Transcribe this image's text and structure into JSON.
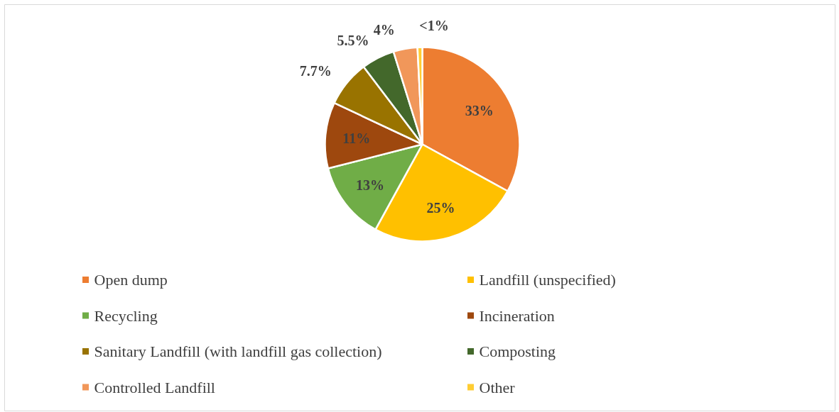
{
  "chart_data": {
    "type": "pie",
    "categories": [
      "Open dump",
      "Landfill (unspecified)",
      "Recycling",
      "Incineration",
      "Sanitary Landfill (with landfill gas collection)",
      "Composting",
      "Controlled Landfill",
      "Other"
    ],
    "values": [
      33,
      25,
      13,
      11,
      7.7,
      5.5,
      4,
      0.8
    ],
    "value_labels": [
      "33%",
      "25%",
      "13%",
      "11%",
      "7.7%",
      "5.5%",
      "4%",
      "<1%"
    ],
    "colors": [
      "#ed7d31",
      "#ffc000",
      "#70ad47",
      "#9e480e",
      "#997300",
      "#43682b",
      "#f1975a",
      "#ffcd33"
    ],
    "legend": "bottom"
  }
}
